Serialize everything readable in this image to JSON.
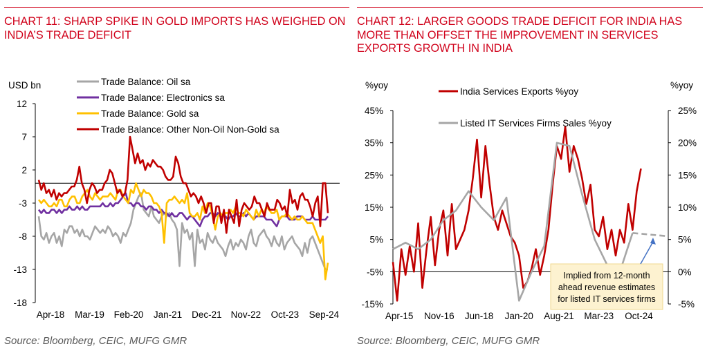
{
  "chart_data": [
    {
      "type": "line",
      "title": "CHART 11: SHARP SPIKE IN GOLD IMPORTS HAS WEIGHED ON INDIA’S TRADE DEFICIT",
      "ylabel": "USD bn",
      "xlabel": "",
      "ylim": [
        -18,
        12
      ],
      "yticks": [
        12,
        7,
        2,
        -3,
        -8,
        -13,
        -18
      ],
      "xtick_labels": [
        "Apr-18",
        "Mar-19",
        "Feb-20",
        "Jan-21",
        "Dec-21",
        "Nov-22",
        "Oct-23",
        "Sep-24"
      ],
      "x_start": "Apr-18",
      "x_end": "Oct-24",
      "legend_position": "top-left",
      "grid": false,
      "series": [
        {
          "name": "Trade Balance: Oil sa",
          "color": "#a6a6a6",
          "values": [
            -5,
            -8,
            -8.5,
            -7.5,
            -9,
            -8,
            -7.5,
            -9,
            -8,
            -9.5,
            -7,
            -7.5,
            -6.5,
            -6.5,
            -7.5,
            -7,
            -8,
            -7,
            -8,
            -8,
            -8.5,
            -7.5,
            -6.5,
            -7,
            -7.5,
            -7,
            -7.5,
            -6.5,
            -7,
            -8,
            -7.5,
            -8,
            -9,
            -7.5,
            -8,
            -7,
            -6,
            -4,
            -3,
            -2,
            -1.5,
            -4,
            -4.5,
            -5,
            -3.5,
            -5,
            -5.5,
            -6,
            -5,
            -4.5,
            -5,
            -4.5,
            -5.5,
            -6,
            -7,
            -12.5,
            -6,
            -7.5,
            -7,
            -8.5,
            -7.5,
            -12.5,
            -7,
            -9,
            -8.5,
            -10,
            -7.5,
            -8.5,
            -9,
            -8,
            -9,
            -9.5,
            -10,
            -11,
            -9.5,
            -8.5,
            -10,
            -9,
            -9.5,
            -8.5,
            -9,
            -10,
            -8,
            -7,
            -9,
            -9.5,
            -8,
            -7.5,
            -7,
            -8,
            -8.5,
            -9.5,
            -8,
            -9,
            -9.5,
            -8,
            -10,
            -9,
            -8.5,
            -8,
            -9,
            -9.5,
            -10,
            -11,
            -9,
            -10.5,
            -8.5,
            -8,
            -9,
            -10,
            -11,
            -12,
            -13,
            -13
          ]
        },
        {
          "name": "Trade Balance: Electronics sa",
          "color": "#7030a0",
          "values": [
            -4,
            -4.5,
            -4,
            -4.5,
            -4.5,
            -4,
            -4,
            -4.5,
            -4,
            -4.5,
            -4,
            -4,
            -3.5,
            -4,
            -4,
            -3.5,
            -4,
            -3.5,
            -4,
            -4,
            -3.5,
            -3.5,
            -3.5,
            -3.5,
            -3.5,
            -3,
            -3.5,
            -3.5,
            -3,
            -3.5,
            -3,
            -3,
            -2.5,
            -2,
            -1.5,
            -3,
            -3,
            -3.5,
            -3,
            -3,
            -3.5,
            -3.5,
            -4,
            -3.5,
            -3.5,
            -4,
            -4,
            -4.5,
            -4,
            -4.5,
            -4.5,
            -5,
            -4.5,
            -5,
            -5,
            -4.5,
            -4.5,
            -5,
            -5.5,
            -5,
            -5,
            -5.5,
            -6,
            -6.5,
            -5.5,
            -5,
            -5,
            -4.5,
            -4.5,
            -5,
            -4.5,
            -5,
            -5,
            -5,
            -5.5,
            -5,
            -5,
            -4.5,
            -5,
            -5,
            -4.5,
            -5,
            -4.5,
            -5,
            -5.5,
            -5,
            -5,
            -5,
            -5,
            -5.5,
            -5.5,
            -5.5,
            -6,
            -6.5,
            -5.5,
            -5,
            -5,
            -5,
            -5.5,
            -5.5,
            -5.5,
            -5,
            -5,
            -5,
            -5.5,
            -5.5,
            -5.5,
            -5,
            -5.5,
            -5.5,
            -5.5,
            -5.5,
            -5.5,
            -5
          ]
        },
        {
          "name": "Trade Balance: Gold sa",
          "color": "#ffc000",
          "values": [
            -2.5,
            -3,
            -2.5,
            -3,
            -3.5,
            -3.5,
            -3,
            -3.5,
            -2.5,
            -2.5,
            -3.5,
            -3.5,
            -2.5,
            -2,
            -2,
            -3,
            -3,
            -2,
            -1.5,
            -1,
            -2,
            -2.5,
            -1.5,
            -2,
            -2.5,
            -2,
            -2,
            -2,
            -1.5,
            -2,
            -2.5,
            -1,
            -1,
            -2,
            -2.5,
            -3,
            -1,
            -1.5,
            0,
            -1,
            -2,
            -1,
            -1.5,
            -1.5,
            -2,
            -3,
            -3,
            -3.5,
            -4.5,
            -9,
            -3,
            -2.5,
            -2.5,
            -2,
            -2.5,
            -3,
            -2.5,
            -3,
            -1.5,
            -4.5,
            -5,
            -5,
            -4.5,
            -5.5,
            -3.5,
            -4.5,
            -3,
            -3.5,
            -5,
            -7,
            -5,
            -4.5,
            -5,
            -4.5,
            -4.5,
            -4,
            -4.5,
            -3.5,
            -4.5,
            -4.5,
            -5,
            -4,
            -4.5,
            -5,
            -5.5,
            -4,
            -5,
            -4,
            -4.5,
            -3.5,
            -4,
            -4.5,
            -4.5,
            -4,
            -5.5,
            -5,
            -5,
            -4.5,
            -5,
            -5.5,
            -5,
            -5.5,
            -5.5,
            -5,
            -5.5,
            -6,
            -6,
            -6,
            -7,
            -8,
            -9,
            -8,
            -14.5,
            -12
          ]
        },
        {
          "name": "Trade Balance: Other Non-Oil Non-Gold sa",
          "color": "#c00000",
          "values": [
            0.5,
            -1,
            0,
            -1.5,
            -1,
            -2,
            -1,
            -2.5,
            -1.5,
            -2,
            -1.5,
            -1.5,
            -1,
            -0.5,
            -0.5,
            0.5,
            2.5,
            0,
            -1,
            -3,
            -1,
            0,
            -0.5,
            -1.5,
            -1,
            -1,
            0,
            0.5,
            2,
            1.5,
            0,
            -1.5,
            -1,
            -2,
            -1.5,
            0.5,
            7,
            5,
            3,
            4.5,
            3,
            3.5,
            2,
            3,
            2.5,
            3.5,
            3,
            2.5,
            2.5,
            2,
            1,
            0.5,
            0.5,
            1,
            4,
            3,
            1,
            0,
            0,
            -1,
            -2,
            -1.5,
            -2,
            -3,
            -2,
            -3,
            -4.5,
            -3,
            -3,
            -6,
            -3.5,
            -3.5,
            -6,
            -4,
            -7.5,
            -4,
            -5,
            -6,
            -2.5,
            -6.5,
            -4,
            -3,
            -3.5,
            -4,
            -3.5,
            -2,
            -3,
            -3,
            -4,
            -5,
            -3,
            -4,
            -4,
            -4,
            -2.5,
            -3,
            -4,
            -3.5,
            -5,
            -1,
            -3,
            -2.5,
            -4,
            -2,
            -1.5,
            -2.5,
            -2.5,
            -3.5,
            -5,
            -3,
            -2,
            -6.5,
            0,
            0,
            -4.5
          ]
        }
      ]
    },
    {
      "type": "line",
      "title": "CHART 12: LARGER GOODS TRADE DEFICIT FOR INDIA HAS MORE THAN OFFSET THE IMPROVEMENT IN SERVICES EXPORTS GROWTH IN INDIA",
      "ylabel_left": "%yoy",
      "ylabel_right": "%yoy",
      "xlabel": "",
      "ylim_left": [
        -15,
        45
      ],
      "ylim_right": [
        -5,
        25
      ],
      "yticks_left": [
        "45%",
        "35%",
        "25%",
        "15%",
        "5%",
        "-5%",
        "-15%"
      ],
      "yticks_right": [
        "25%",
        "20%",
        "15%",
        "10%",
        "5%",
        "0%",
        "-5%"
      ],
      "xtick_labels": [
        "Apr-15",
        "Nov-16",
        "Jun-18",
        "Jan-20",
        "Aug-21",
        "Mar-23",
        "Oct-24"
      ],
      "x_start": "Jan-15",
      "x_end": "Dec-25",
      "legend_position": "top-center",
      "grid": false,
      "annotation": "Implied from 12-month ahead revenue estimates for listed IT services firms",
      "series": [
        {
          "name": "India Services Exports %yoy",
          "axis": "left",
          "color": "#c00000",
          "x": [
            "Jan-15",
            "Mar-15",
            "May-15",
            "Jul-15",
            "Sep-15",
            "Nov-15",
            "Jan-16",
            "Mar-16",
            "May-16",
            "Jul-16",
            "Sep-16",
            "Nov-16",
            "Jan-17",
            "Mar-17",
            "May-17",
            "Jul-17",
            "Sep-17",
            "Nov-17",
            "Jan-18",
            "Mar-18",
            "May-18",
            "Jul-18",
            "Sep-18",
            "Nov-18",
            "Jan-19",
            "Mar-19",
            "May-19",
            "Jul-19",
            "Sep-19",
            "Nov-19",
            "Jan-20",
            "Mar-20",
            "May-20",
            "Jul-20",
            "Sep-20",
            "Nov-20",
            "Jan-21",
            "Mar-21",
            "May-21",
            "Jul-21",
            "Sep-21",
            "Nov-21",
            "Jan-22",
            "Mar-22",
            "May-22",
            "Jul-22",
            "Sep-22",
            "Nov-22",
            "Jan-23",
            "Mar-23",
            "May-23",
            "Jul-23",
            "Sep-23",
            "Nov-23",
            "Jan-24",
            "Mar-24",
            "May-24",
            "Jul-24",
            "Sep-24",
            "Nov-24"
          ],
          "values": [
            -2,
            -14,
            2,
            -6,
            3,
            -5,
            10,
            -10,
            2,
            12,
            -3,
            8,
            14,
            0,
            16,
            2,
            5,
            8,
            14,
            24,
            36,
            18,
            34,
            22,
            12,
            8,
            14,
            10,
            6,
            4,
            0,
            -10,
            -8,
            -4,
            2,
            -6,
            0,
            8,
            22,
            34,
            30,
            40,
            26,
            34,
            30,
            24,
            16,
            22,
            8,
            6,
            12,
            2,
            8,
            0,
            8,
            4,
            16,
            8,
            20,
            27
          ]
        },
        {
          "name": "Listed IT Services Firms Sales %yoy",
          "axis": "right",
          "color": "#a6a6a6",
          "x": [
            "Jan-15",
            "Jul-15",
            "Jan-16",
            "Jul-16",
            "Jan-17",
            "Jul-17",
            "Jan-18",
            "Jul-18",
            "Jan-19",
            "Jul-19",
            "Jan-20",
            "Jul-20",
            "Jan-21",
            "Jul-21",
            "Jan-22",
            "Jul-22",
            "Jan-23",
            "Jul-23",
            "Jan-24",
            "Jul-24"
          ],
          "values": [
            3.5,
            4.5,
            3.5,
            5,
            8,
            9.5,
            12.5,
            10,
            8,
            11.5,
            -4.5,
            0,
            4,
            20,
            19.5,
            12,
            5,
            1,
            0,
            6
          ]
        },
        {
          "name": "Listed IT Services Firms Sales %yoy (implied)",
          "axis": "right",
          "color": "#a6a6a6",
          "dashed": true,
          "x": [
            "Jul-24",
            "Dec-25"
          ],
          "values": [
            6,
            5.5
          ]
        }
      ]
    }
  ],
  "panels": {
    "left": {
      "title": "CHART 11: SHARP SPIKE IN GOLD IMPORTS HAS WEIGHED ON INDIA’S TRADE DEFICIT",
      "source": "Source: Bloomberg, CEIC, MUFG GMR"
    },
    "right": {
      "title": "CHART 12: LARGER GOODS TRADE DEFICIT FOR INDIA HAS MORE THAN OFFSET THE IMPROVEMENT IN SERVICES EXPORTS GROWTH IN INDIA",
      "source": "Source: Bloomberg, CEIC, MUFG GMR"
    }
  }
}
